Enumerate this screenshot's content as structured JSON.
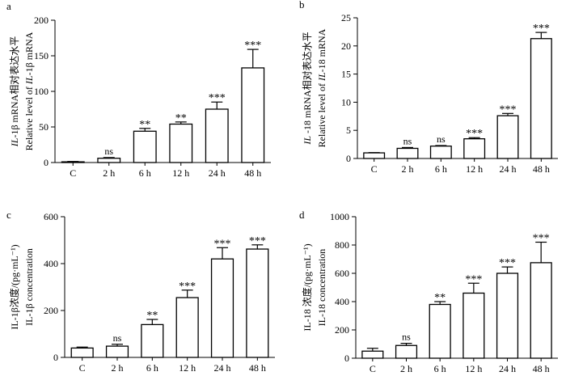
{
  "chart_data": [
    {
      "type": "bar",
      "panel_label": "a",
      "categories": [
        "C",
        "2 h",
        "6 h",
        "12 h",
        "24 h",
        "48 h"
      ],
      "values": [
        1,
        6,
        44,
        54,
        75,
        133
      ],
      "errors": [
        0.5,
        1,
        4,
        3,
        10,
        26
      ],
      "significance": [
        "",
        "ns",
        "**",
        "**",
        "***",
        "***"
      ],
      "ylabel_cn_prefix": "IL",
      "ylabel_cn_rest": "-1β mRNA相对表达水平",
      "ylabel_en_prefix": "Relative level of ",
      "ylabel_en_italic": "IL",
      "ylabel_en_suffix": "-1β mRNA",
      "ylim": [
        0,
        200
      ],
      "yticks": [
        "0",
        "50",
        "100",
        "150",
        "200"
      ]
    },
    {
      "type": "bar",
      "panel_label": "b",
      "categories": [
        "C",
        "2 h",
        "6 h",
        "12 h",
        "24 h",
        "48 h"
      ],
      "values": [
        1,
        1.8,
        2.2,
        3.5,
        7.6,
        21.3
      ],
      "errors": [
        0.05,
        0.15,
        0.1,
        0.2,
        0.4,
        1.1
      ],
      "significance": [
        "",
        "ns",
        "ns",
        "***",
        "***",
        "***"
      ],
      "ylabel_cn_prefix": "IL",
      "ylabel_cn_rest": " -18 mRNA相对表达水平",
      "ylabel_en_prefix": "Relative level of ",
      "ylabel_en_italic": "IL",
      "ylabel_en_suffix": "-18 mRNA",
      "ylim": [
        0,
        25
      ],
      "yticks": [
        "0",
        "5",
        "10",
        "15",
        "20",
        "25"
      ]
    },
    {
      "type": "bar",
      "panel_label": "c",
      "categories": [
        "C",
        "2 h",
        "6 h",
        "12 h",
        "24 h",
        "48 h"
      ],
      "values": [
        40,
        48,
        140,
        255,
        420,
        462
      ],
      "errors": [
        4,
        8,
        22,
        32,
        48,
        18
      ],
      "significance": [
        "",
        "ns",
        "**",
        "***",
        "***",
        "***"
      ],
      "ylabel_cn": "IL-1β浓度/(pg·mL⁻¹)",
      "ylabel_en": "IL-1β concentration",
      "ylim": [
        0,
        600
      ],
      "yticks": [
        "0",
        "200",
        "400",
        "600"
      ]
    },
    {
      "type": "bar",
      "panel_label": "d",
      "categories": [
        "C",
        "2 h",
        "6 h",
        "12 h",
        "24 h",
        "48 h"
      ],
      "values": [
        50,
        90,
        380,
        460,
        600,
        675
      ],
      "errors": [
        20,
        15,
        20,
        70,
        45,
        145
      ],
      "significance": [
        "",
        "ns",
        "**",
        "***",
        "***",
        "***"
      ],
      "ylabel_cn": "IL-18 浓度/(pg·mL⁻¹)",
      "ylabel_en": "IL-18 concentration",
      "ylim": [
        0,
        1000
      ],
      "yticks": [
        "0",
        "200",
        "400",
        "600",
        "800",
        "1000"
      ]
    }
  ]
}
